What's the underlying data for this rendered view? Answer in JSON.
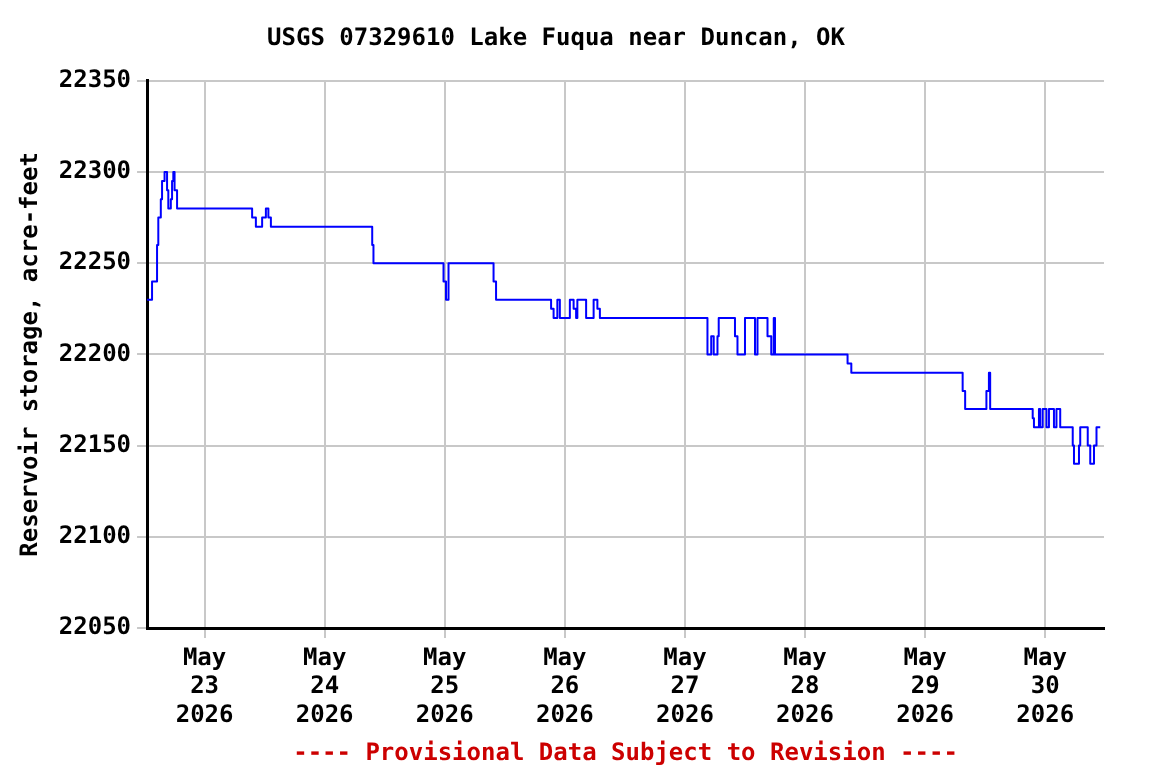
{
  "chart_data": {
    "type": "step",
    "title": "USGS 07329610 Lake Fuqua near Duncan, OK",
    "ylabel": "Reservoir storage, acre-feet",
    "annotations": [
      "---- Provisional Data Subject to Revision ----"
    ],
    "x": [
      "2026-05-22T12:30",
      "2026-05-22T13:30",
      "2026-05-22T14:30",
      "2026-05-22T14:45",
      "2026-05-22T15:15",
      "2026-05-22T15:30",
      "2026-05-22T16:00",
      "2026-05-22T16:30",
      "2026-05-22T16:45",
      "2026-05-22T17:15",
      "2026-05-22T17:30",
      "2026-05-22T17:45",
      "2026-05-22T18:00",
      "2026-05-22T18:30",
      "2026-05-23T09:30",
      "2026-05-23T10:15",
      "2026-05-23T11:30",
      "2026-05-23T12:15",
      "2026-05-23T12:45",
      "2026-05-23T13:15",
      "2026-05-24T09:30",
      "2026-05-24T09:45",
      "2026-05-24T23:45",
      "2026-05-25T00:15",
      "2026-05-25T00:45",
      "2026-05-25T09:45",
      "2026-05-25T10:15",
      "2026-05-25T21:15",
      "2026-05-25T21:45",
      "2026-05-25T22:30",
      "2026-05-25T23:00",
      "2026-05-26T01:00",
      "2026-05-26T01:45",
      "2026-05-26T02:15",
      "2026-05-26T02:30",
      "2026-05-26T04:15",
      "2026-05-26T05:45",
      "2026-05-26T06:30",
      "2026-05-26T07:00",
      "2026-05-27T04:30",
      "2026-05-27T05:15",
      "2026-05-27T05:45",
      "2026-05-27T06:30",
      "2026-05-27T06:45",
      "2026-05-27T10:00",
      "2026-05-27T10:30",
      "2026-05-27T12:00",
      "2026-05-27T14:00",
      "2026-05-27T14:30",
      "2026-05-27T16:30",
      "2026-05-27T17:15",
      "2026-05-27T17:45",
      "2026-05-27T18:00",
      "2026-05-28T08:30",
      "2026-05-28T09:15",
      "2026-05-29T07:30",
      "2026-05-29T08:00",
      "2026-05-29T12:15",
      "2026-05-29T12:45",
      "2026-05-29T13:00",
      "2026-05-29T21:30",
      "2026-05-29T21:45",
      "2026-05-29T22:45",
      "2026-05-29T23:00",
      "2026-05-29T23:30",
      "2026-05-30T00:15",
      "2026-05-30T00:45",
      "2026-05-30T01:45",
      "2026-05-30T02:15",
      "2026-05-30T03:00",
      "2026-05-30T05:30",
      "2026-05-30T05:45",
      "2026-05-30T06:45",
      "2026-05-30T07:00",
      "2026-05-30T08:30",
      "2026-05-30T09:00",
      "2026-05-30T09:45",
      "2026-05-30T10:15",
      "2026-05-30T11:00"
    ],
    "series": [
      {
        "color": "#0000ff",
        "values": [
          22230,
          22240,
          22260,
          22275,
          22285,
          22295,
          22300,
          22290,
          22280,
          22285,
          22295,
          22300,
          22290,
          22280,
          22275,
          22270,
          22275,
          22280,
          22275,
          22270,
          22260,
          22250,
          22240,
          22230,
          22250,
          22240,
          22230,
          22225,
          22220,
          22230,
          22220,
          22230,
          22225,
          22220,
          22230,
          22220,
          22230,
          22225,
          22220,
          22200,
          22210,
          22200,
          22210,
          22220,
          22210,
          22200,
          22220,
          22200,
          22220,
          22210,
          22200,
          22220,
          22200,
          22195,
          22190,
          22180,
          22170,
          22180,
          22190,
          22170,
          22165,
          22160,
          22170,
          22160,
          22170,
          22160,
          22170,
          22160,
          22170,
          22160,
          22150,
          22140,
          22150,
          22160,
          22150,
          22140,
          22150,
          22160,
          22160
        ]
      }
    ],
    "xlim": [
      "2026-05-22T12:30",
      "2026-05-30T11:45"
    ],
    "xticks": [
      {
        "value": "2026-05-23",
        "label": "May\n23\n2026"
      },
      {
        "value": "2026-05-24",
        "label": "May\n24\n2026"
      },
      {
        "value": "2026-05-25",
        "label": "May\n25\n2026"
      },
      {
        "value": "2026-05-26",
        "label": "May\n26\n2026"
      },
      {
        "value": "2026-05-27",
        "label": "May\n27\n2026"
      },
      {
        "value": "2026-05-28",
        "label": "May\n28\n2026"
      },
      {
        "value": "2026-05-29",
        "label": "May\n29\n2026"
      },
      {
        "value": "2026-05-30",
        "label": "May\n30\n2026"
      }
    ],
    "ylim": [
      22050,
      22350
    ],
    "yticks": [
      22050,
      22100,
      22150,
      22200,
      22250,
      22300,
      22350
    ],
    "grid": true,
    "legend": false,
    "marker": "none",
    "line_style": "solid"
  }
}
